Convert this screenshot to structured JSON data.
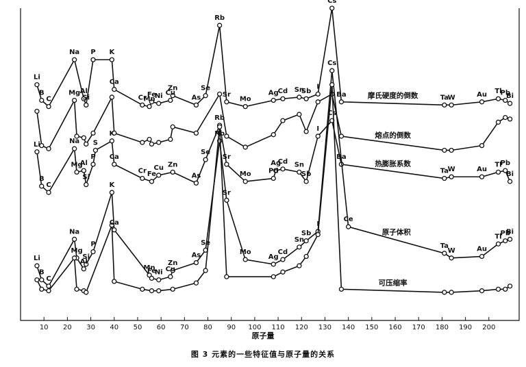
{
  "caption": "图 3   元素的一些特征值与原子量的关系",
  "chart_data": {
    "type": "line",
    "xlabel": "原子量",
    "xlim": [
      0,
      210
    ],
    "xticks": [
      10,
      20,
      30,
      40,
      50,
      60,
      70,
      80,
      90,
      100,
      110,
      120,
      130,
      140,
      150,
      160,
      170,
      180,
      190,
      200
    ],
    "grid": false,
    "legend": "inline labels at right end of each curve",
    "marker_style": "open circles",
    "series": [
      {
        "name": "摩氏硬度的倒数",
        "points": [
          {
            "x": 7,
            "y": 0.755,
            "label": "Li"
          },
          {
            "x": 9,
            "y": 0.705,
            "label": "B"
          },
          {
            "x": 12,
            "y": 0.685,
            "label": "C"
          },
          {
            "x": 23,
            "y": 0.835,
            "label": "Na"
          },
          {
            "x": 27,
            "y": 0.71,
            "label": "Al"
          },
          {
            "x": 28,
            "y": 0.69,
            "label": "Si"
          },
          {
            "x": 31,
            "y": 0.835,
            "label": "P"
          },
          {
            "x": 39,
            "y": 0.835,
            "label": "K"
          },
          {
            "x": 40,
            "y": 0.74,
            "label": "Ca"
          },
          {
            "x": 52,
            "y": 0.69,
            "label": "Cr"
          },
          {
            "x": 55,
            "y": 0.685,
            "label": "Mn"
          },
          {
            "x": 56,
            "y": 0.7,
            "label": "Fe"
          },
          {
            "x": 59,
            "y": 0.695,
            "label": "Ni"
          },
          {
            "x": 64,
            "y": 0.705,
            "label": "Cu"
          },
          {
            "x": 65,
            "y": 0.72,
            "label": "Zn"
          },
          {
            "x": 75,
            "y": 0.69,
            "label": "As"
          },
          {
            "x": 79,
            "y": 0.72,
            "label": "Se"
          },
          {
            "x": 85,
            "y": 0.945,
            "label": "Rb"
          },
          {
            "x": 88,
            "y": 0.7,
            "label": "Sr"
          },
          {
            "x": 96,
            "y": 0.685,
            "label": "Mo"
          },
          {
            "x": 108,
            "y": 0.705,
            "label": "Ag"
          },
          {
            "x": 112,
            "y": 0.71,
            "label": "Cd"
          },
          {
            "x": 119,
            "y": 0.715,
            "label": "Sn"
          },
          {
            "x": 122,
            "y": 0.71,
            "label": "Sb"
          },
          {
            "x": 127,
            "y": 0.725,
            "label": "I"
          },
          {
            "x": 133,
            "y": 1.0,
            "label": "Cs"
          },
          {
            "x": 137,
            "y": 0.7,
            "label": "Ba"
          },
          {
            "x": 181,
            "y": 0.69,
            "label": "Ta"
          },
          {
            "x": 184,
            "y": 0.69,
            "label": "W"
          },
          {
            "x": 197,
            "y": 0.7,
            "label": "Au"
          },
          {
            "x": 204,
            "y": 0.71,
            "label": "Tl"
          },
          {
            "x": 207,
            "y": 0.705,
            "label": "Pb"
          },
          {
            "x": 209,
            "y": 0.695,
            "label": "Bi"
          }
        ]
      },
      {
        "name": "熔点的倒数",
        "points": [
          {
            "x": 7,
            "y": 0.67,
            "label": ""
          },
          {
            "x": 9,
            "y": 0.56,
            "label": ""
          },
          {
            "x": 12,
            "y": 0.55,
            "label": ""
          },
          {
            "x": 23,
            "y": 0.705,
            "label": "Mg"
          },
          {
            "x": 24,
            "y": 0.59,
            "label": ""
          },
          {
            "x": 27,
            "y": 0.585,
            "label": ""
          },
          {
            "x": 28,
            "y": 0.565,
            "label": ""
          },
          {
            "x": 31,
            "y": 0.6,
            "label": ""
          },
          {
            "x": 39,
            "y": 0.715,
            "label": ""
          },
          {
            "x": 40,
            "y": 0.6,
            "label": ""
          },
          {
            "x": 52,
            "y": 0.57,
            "label": ""
          },
          {
            "x": 55,
            "y": 0.58,
            "label": ""
          },
          {
            "x": 56,
            "y": 0.565,
            "label": ""
          },
          {
            "x": 59,
            "y": 0.57,
            "label": ""
          },
          {
            "x": 64,
            "y": 0.58,
            "label": ""
          },
          {
            "x": 65,
            "y": 0.62,
            "label": ""
          },
          {
            "x": 75,
            "y": 0.6,
            "label": ""
          },
          {
            "x": 85,
            "y": 0.725,
            "label": ""
          },
          {
            "x": 88,
            "y": 0.59,
            "label": ""
          },
          {
            "x": 96,
            "y": 0.555,
            "label": ""
          },
          {
            "x": 108,
            "y": 0.595,
            "label": ""
          },
          {
            "x": 112,
            "y": 0.64,
            "label": ""
          },
          {
            "x": 119,
            "y": 0.66,
            "label": ""
          },
          {
            "x": 122,
            "y": 0.605,
            "label": ""
          },
          {
            "x": 127,
            "y": 0.7,
            "label": ""
          },
          {
            "x": 133,
            "y": 0.725,
            "label": ""
          },
          {
            "x": 137,
            "y": 0.59,
            "label": ""
          },
          {
            "x": 181,
            "y": 0.545,
            "label": ""
          },
          {
            "x": 184,
            "y": 0.545,
            "label": ""
          },
          {
            "x": 197,
            "y": 0.56,
            "label": ""
          },
          {
            "x": 204,
            "y": 0.635,
            "label": ""
          },
          {
            "x": 207,
            "y": 0.65,
            "label": ""
          },
          {
            "x": 209,
            "y": 0.645,
            "label": ""
          }
        ]
      },
      {
        "name": "热膨胀系数",
        "points": [
          {
            "x": 7,
            "y": 0.54,
            "label": "Li"
          },
          {
            "x": 9,
            "y": 0.43,
            "label": "B"
          },
          {
            "x": 12,
            "y": 0.41,
            "label": "C"
          },
          {
            "x": 23,
            "y": 0.55,
            "label": "Na"
          },
          {
            "x": 24,
            "y": 0.475,
            "label": "Mg"
          },
          {
            "x": 27,
            "y": 0.48,
            "label": "Al"
          },
          {
            "x": 28,
            "y": 0.435,
            "label": "Si"
          },
          {
            "x": 31,
            "y": 0.5,
            "label": "P"
          },
          {
            "x": 32,
            "y": 0.545,
            "label": "S"
          },
          {
            "x": 39,
            "y": 0.575,
            "label": "K"
          },
          {
            "x": 40,
            "y": 0.5,
            "label": "Ca"
          },
          {
            "x": 52,
            "y": 0.455,
            "label": "Cr"
          },
          {
            "x": 56,
            "y": 0.445,
            "label": "Fe"
          },
          {
            "x": 59,
            "y": 0.465,
            "label": "Cu"
          },
          {
            "x": 65,
            "y": 0.475,
            "label": "Zn"
          },
          {
            "x": 75,
            "y": 0.44,
            "label": "As"
          },
          {
            "x": 79,
            "y": 0.515,
            "label": "Se"
          },
          {
            "x": 85,
            "y": 0.625,
            "label": "Rb"
          },
          {
            "x": 88,
            "y": 0.5,
            "label": "Sr"
          },
          {
            "x": 96,
            "y": 0.445,
            "label": "Mo"
          },
          {
            "x": 108,
            "y": 0.455,
            "label": "Pd"
          },
          {
            "x": 109,
            "y": 0.48,
            "label": "Ag"
          },
          {
            "x": 112,
            "y": 0.485,
            "label": "Cd"
          },
          {
            "x": 119,
            "y": 0.475,
            "label": "Sn"
          },
          {
            "x": 122,
            "y": 0.445,
            "label": "Sb"
          },
          {
            "x": 127,
            "y": 0.59,
            "label": "I"
          },
          {
            "x": 133,
            "y": 0.64,
            "label": "Cs"
          },
          {
            "x": 137,
            "y": 0.5,
            "label": "Ba"
          },
          {
            "x": 181,
            "y": 0.455,
            "label": "Ta"
          },
          {
            "x": 184,
            "y": 0.46,
            "label": "W"
          },
          {
            "x": 197,
            "y": 0.46,
            "label": "Au"
          },
          {
            "x": 204,
            "y": 0.475,
            "label": "Tl"
          },
          {
            "x": 207,
            "y": 0.48,
            "label": "Pb"
          },
          {
            "x": 209,
            "y": 0.445,
            "label": "Bi"
          }
        ]
      },
      {
        "name": "原子体积",
        "points": [
          {
            "x": 7,
            "y": 0.175,
            "label": "Li"
          },
          {
            "x": 9,
            "y": 0.13,
            "label": "B"
          },
          {
            "x": 12,
            "y": 0.11,
            "label": "C"
          },
          {
            "x": 23,
            "y": 0.26,
            "label": "Na"
          },
          {
            "x": 24,
            "y": 0.2,
            "label": "Mg"
          },
          {
            "x": 27,
            "y": 0.165,
            "label": "Al"
          },
          {
            "x": 28,
            "y": 0.18,
            "label": "Si"
          },
          {
            "x": 31,
            "y": 0.22,
            "label": "P"
          },
          {
            "x": 39,
            "y": 0.41,
            "label": "K"
          },
          {
            "x": 40,
            "y": 0.29,
            "label": "Ca"
          },
          {
            "x": 55,
            "y": 0.145,
            "label": "Mn"
          },
          {
            "x": 56,
            "y": 0.135,
            "label": "Fe"
          },
          {
            "x": 59,
            "y": 0.13,
            "label": "Ni"
          },
          {
            "x": 64,
            "y": 0.14,
            "label": "Cu"
          },
          {
            "x": 65,
            "y": 0.16,
            "label": "Zn"
          },
          {
            "x": 75,
            "y": 0.185,
            "label": "As"
          },
          {
            "x": 79,
            "y": 0.225,
            "label": "Se"
          },
          {
            "x": 85,
            "y": 0.575,
            "label": "Rb"
          },
          {
            "x": 88,
            "y": 0.385,
            "label": "Sr"
          },
          {
            "x": 96,
            "y": 0.195,
            "label": "Mo"
          },
          {
            "x": 108,
            "y": 0.18,
            "label": "Ag"
          },
          {
            "x": 112,
            "y": 0.195,
            "label": "Cd"
          },
          {
            "x": 119,
            "y": 0.235,
            "label": "Sn"
          },
          {
            "x": 122,
            "y": 0.255,
            "label": "Sb"
          },
          {
            "x": 127,
            "y": 0.285,
            "label": "I"
          },
          {
            "x": 133,
            "y": 0.8,
            "label": "Cs"
          },
          {
            "x": 140,
            "y": 0.3,
            "label": "Ce"
          },
          {
            "x": 181,
            "y": 0.215,
            "label": "Ta"
          },
          {
            "x": 184,
            "y": 0.2,
            "label": "W"
          },
          {
            "x": 197,
            "y": 0.205,
            "label": "Au"
          },
          {
            "x": 204,
            "y": 0.245,
            "label": "Tl"
          },
          {
            "x": 207,
            "y": 0.255,
            "label": "Pb"
          },
          {
            "x": 209,
            "y": 0.26,
            "label": "Bi"
          }
        ]
      },
      {
        "name": "可压缩率",
        "points": [
          {
            "x": 7,
            "y": 0.13,
            "label": ""
          },
          {
            "x": 9,
            "y": 0.1,
            "label": ""
          },
          {
            "x": 12,
            "y": 0.095,
            "label": ""
          },
          {
            "x": 23,
            "y": 0.2,
            "label": ""
          },
          {
            "x": 24,
            "y": 0.1,
            "label": ""
          },
          {
            "x": 27,
            "y": 0.095,
            "label": ""
          },
          {
            "x": 28,
            "y": 0.09,
            "label": ""
          },
          {
            "x": 39,
            "y": 0.305,
            "label": ""
          },
          {
            "x": 40,
            "y": 0.125,
            "label": ""
          },
          {
            "x": 52,
            "y": 0.1,
            "label": ""
          },
          {
            "x": 56,
            "y": 0.095,
            "label": ""
          },
          {
            "x": 59,
            "y": 0.095,
            "label": ""
          },
          {
            "x": 65,
            "y": 0.1,
            "label": ""
          },
          {
            "x": 75,
            "y": 0.12,
            "label": ""
          },
          {
            "x": 79,
            "y": 0.16,
            "label": ""
          },
          {
            "x": 85,
            "y": 0.62,
            "label": ""
          },
          {
            "x": 88,
            "y": 0.14,
            "label": ""
          },
          {
            "x": 108,
            "y": 0.14,
            "label": ""
          },
          {
            "x": 112,
            "y": 0.155,
            "label": ""
          },
          {
            "x": 119,
            "y": 0.175,
            "label": ""
          },
          {
            "x": 122,
            "y": 0.205,
            "label": ""
          },
          {
            "x": 127,
            "y": 0.275,
            "label": ""
          },
          {
            "x": 133,
            "y": 0.755,
            "label": ""
          },
          {
            "x": 137,
            "y": 0.1,
            "label": ""
          },
          {
            "x": 181,
            "y": 0.09,
            "label": ""
          },
          {
            "x": 184,
            "y": 0.09,
            "label": ""
          },
          {
            "x": 197,
            "y": 0.095,
            "label": ""
          },
          {
            "x": 204,
            "y": 0.1,
            "label": ""
          },
          {
            "x": 207,
            "y": 0.1,
            "label": ""
          },
          {
            "x": 209,
            "y": 0.11,
            "label": ""
          }
        ]
      }
    ]
  },
  "extra_labels": {
    "Pb_on_melting": "Pd",
    "Pb_on_compress": "Pb",
    "Cr_on_compress": "Cr",
    "Fe_on_compress": "Fe",
    "Cd_on_atomic": "Cd",
    "W_on_compress": "W",
    "Bi_on_melting": "Bi"
  }
}
